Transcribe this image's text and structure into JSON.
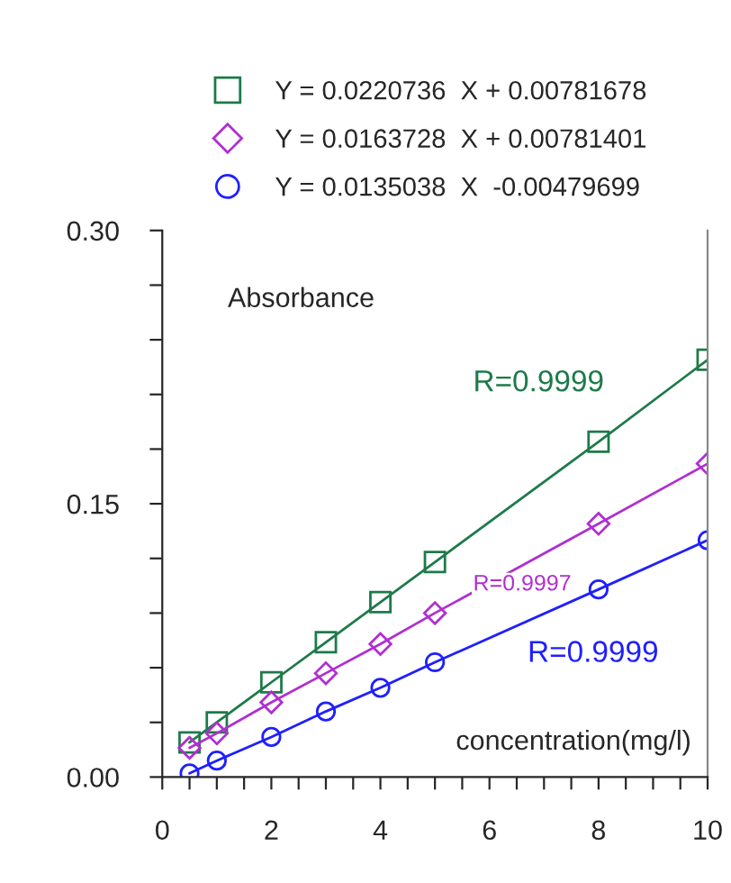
{
  "chart_data": {
    "type": "line",
    "xlabel": "concentration(mg/l)",
    "ylabel": "Absorbance",
    "x": [
      0.5,
      1,
      2,
      3,
      4,
      5,
      8,
      10
    ],
    "series": [
      {
        "name": "Y = 0.0220736  X + 0.00781678",
        "color": "#1e7a4a",
        "marker": "square",
        "values": [
          0.019,
          0.03,
          0.052,
          0.074,
          0.096,
          0.118,
          0.184,
          0.229
        ]
      },
      {
        "name": "Y = 0.0163728  X + 0.00781401",
        "color": "#b02fd0",
        "marker": "diamond",
        "values": [
          0.016,
          0.024,
          0.041,
          0.057,
          0.073,
          0.09,
          0.139,
          0.172
        ]
      },
      {
        "name": "Y = 0.0135038  X  -0.00479699",
        "color": "#1f1fff",
        "marker": "circle",
        "values": [
          0.002,
          0.009,
          0.022,
          0.036,
          0.049,
          0.063,
          0.103,
          0.13
        ]
      }
    ],
    "annotations": [
      "R=0.9999",
      "R=0.9997",
      "R=0.9999"
    ],
    "xlim": [
      0,
      10
    ],
    "xticks": [
      0,
      {
        "value": 0.5,
        "label": null
      },
      {
        "value": 1,
        "label": null
      },
      {
        "value": 1.5,
        "label": null
      },
      2,
      {
        "value": 2.5,
        "label": null
      },
      {
        "value": 3,
        "label": null
      },
      {
        "value": 3.5,
        "label": null
      },
      4,
      {
        "value": 4.5,
        "label": null
      },
      {
        "value": 5,
        "label": null
      },
      {
        "value": 5.5,
        "label": null
      },
      6,
      {
        "value": 6.5,
        "label": null
      },
      {
        "value": 7,
        "label": null
      },
      {
        "value": 7.5,
        "label": null
      },
      8,
      {
        "value": 8.5,
        "label": null
      },
      {
        "value": 9,
        "label": null
      },
      {
        "value": 9.5,
        "label": null
      },
      10
    ],
    "ylim": [
      0,
      0.3
    ],
    "yticks": [
      {
        "value": 0,
        "label": "0.00"
      },
      {
        "value": 0.03,
        "label": null
      },
      {
        "value": 0.06,
        "label": null
      },
      {
        "value": 0.09,
        "label": null
      },
      {
        "value": 0.12,
        "label": null
      },
      {
        "value": 0.15,
        "label": "0.15"
      },
      {
        "value": 0.18,
        "label": null
      },
      {
        "value": 0.21,
        "label": null
      },
      {
        "value": 0.24,
        "label": null
      },
      {
        "value": 0.27,
        "label": null
      },
      {
        "value": 0.3,
        "label": "0.30"
      }
    ],
    "legend": "top",
    "grid": false,
    "line_style": "solid"
  }
}
